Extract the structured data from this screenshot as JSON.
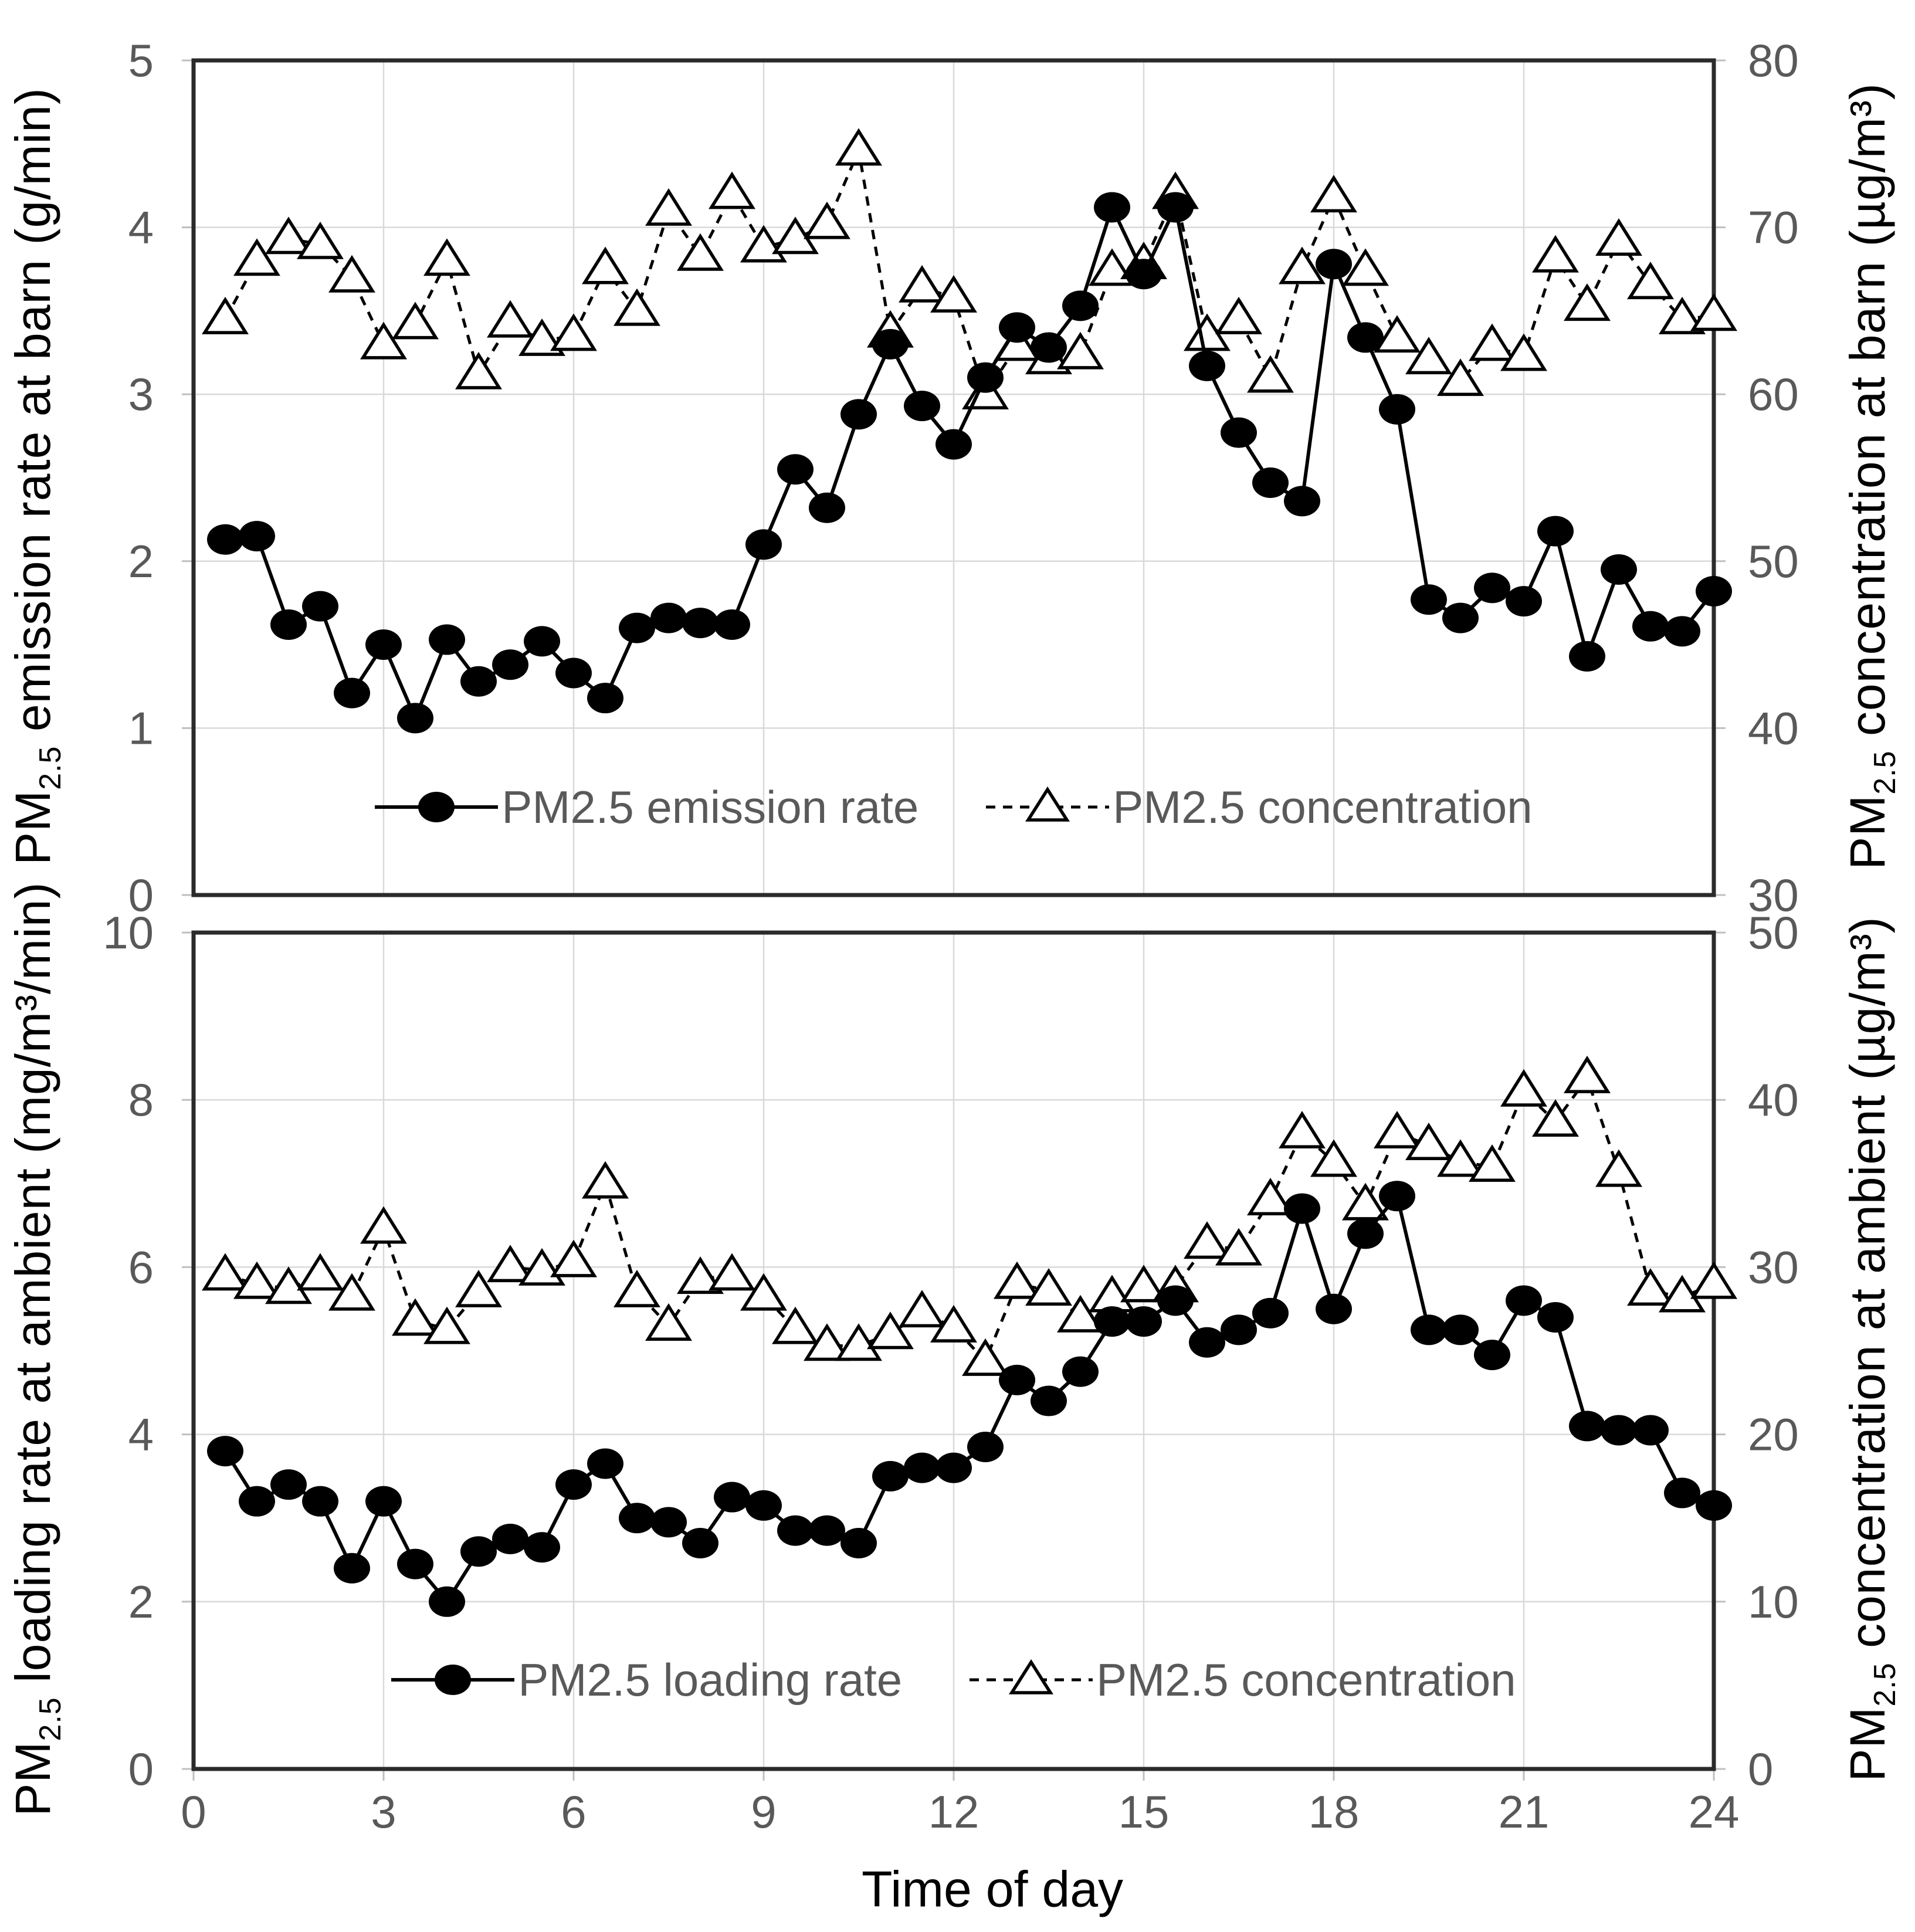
{
  "figure": {
    "background": "#ffffff"
  },
  "colors": {
    "series": "#000000",
    "grid": "#d9d9d9",
    "plot_border": "#2b2b2b",
    "tick_mark": "#bfbfbf",
    "tick_label": "#595959",
    "legend_text": "#595959",
    "axis_title": "#000000"
  },
  "chart_data": [
    {
      "type": "line",
      "panel": "top",
      "x": [
        0.5,
        1,
        1.5,
        2,
        2.5,
        3,
        3.5,
        4,
        4.5,
        5,
        5.5,
        6,
        6.5,
        7,
        7.5,
        8,
        8.5,
        9,
        9.5,
        10,
        10.5,
        11,
        11.5,
        12,
        12.5,
        13,
        13.5,
        14,
        14.5,
        15,
        15.5,
        16,
        16.5,
        17,
        17.5,
        18,
        18.5,
        19,
        19.5,
        20,
        20.5,
        21,
        21.5,
        22,
        22.5,
        23,
        23.5,
        24
      ],
      "x_axis": {
        "min": 0,
        "max": 24,
        "ticks": [
          0,
          3,
          6,
          9,
          12,
          15,
          18,
          21,
          24
        ],
        "show_tick_labels": false,
        "label": ""
      },
      "left_axis": {
        "min": 0,
        "max": 5,
        "ticks": [
          0,
          1,
          2,
          3,
          4,
          5
        ],
        "title_pm": "PM",
        "title_sub": "2.5",
        "title_rest": " emission rate at barn (g/min)"
      },
      "right_axis": {
        "min": 30,
        "max": 80,
        "ticks": [
          30,
          40,
          50,
          60,
          70,
          80
        ],
        "title_pm": "PM",
        "title_sub": "2.5",
        "title_rest": " concentration at barn (µg/m³)"
      },
      "grid": true,
      "legend_position": "inside-bottom",
      "series": [
        {
          "name": "PM2.5 emission rate",
          "axis": "left",
          "marker": "filled-circle",
          "line_style": "solid",
          "values": [
            2.13,
            2.15,
            1.62,
            1.73,
            1.21,
            1.5,
            1.06,
            1.53,
            1.28,
            1.38,
            1.52,
            1.33,
            1.18,
            1.6,
            1.66,
            1.63,
            1.62,
            2.1,
            2.55,
            2.32,
            2.88,
            3.3,
            2.93,
            2.7,
            3.1,
            3.4,
            3.28,
            3.53,
            4.12,
            3.72,
            4.12,
            3.17,
            2.77,
            2.47,
            2.36,
            3.78,
            3.34,
            2.91,
            1.77,
            1.66,
            1.84,
            1.76,
            2.18,
            1.43,
            1.95,
            1.61,
            1.58,
            1.82
          ]
        },
        {
          "name": "PM2.5 concentration",
          "axis": "right",
          "marker": "open-triangle",
          "line_style": "dashed",
          "values": [
            64.5,
            68,
            69.3,
            69,
            67,
            63,
            64.2,
            68,
            61.2,
            64.3,
            63.2,
            63.5,
            67.5,
            65,
            71,
            68.3,
            72,
            68.8,
            69.3,
            70.2,
            74.6,
            63.7,
            66.4,
            65.8,
            60,
            62.9,
            62.1,
            62.4,
            67.4,
            67.8,
            72,
            63.5,
            64.5,
            61,
            67.5,
            71.8,
            67.4,
            63.4,
            62.1,
            60.8,
            62.9,
            62.3,
            68.2,
            65.3,
            69.2,
            66.6,
            64.5,
            64.7
          ]
        }
      ]
    },
    {
      "type": "line",
      "panel": "bottom",
      "x": [
        0.5,
        1,
        1.5,
        2,
        2.5,
        3,
        3.5,
        4,
        4.5,
        5,
        5.5,
        6,
        6.5,
        7,
        7.5,
        8,
        8.5,
        9,
        9.5,
        10,
        10.5,
        11,
        11.5,
        12,
        12.5,
        13,
        13.5,
        14,
        14.5,
        15,
        15.5,
        16,
        16.5,
        17,
        17.5,
        18,
        18.5,
        19,
        19.5,
        20,
        20.5,
        21,
        21.5,
        22,
        22.5,
        23,
        23.5,
        24
      ],
      "x_axis": {
        "min": 0,
        "max": 24,
        "ticks": [
          0,
          3,
          6,
          9,
          12,
          15,
          18,
          21,
          24
        ],
        "show_tick_labels": true,
        "label": "Time of day"
      },
      "left_axis": {
        "min": 0,
        "max": 10,
        "ticks": [
          0,
          2,
          4,
          6,
          8,
          10
        ],
        "title_pm": "PM",
        "title_sub": "2.5",
        "title_rest": " loading rate at ambient (mg/m³/min)"
      },
      "right_axis": {
        "min": 0,
        "max": 50,
        "ticks": [
          0,
          10,
          20,
          30,
          40,
          50
        ],
        "title_pm": "PM",
        "title_sub": "2.5",
        "title_rest": " concentration at ambient (µg/m³)"
      },
      "grid": true,
      "legend_position": "inside-bottom",
      "series": [
        {
          "name": "PM2.5 loading rate",
          "axis": "left",
          "marker": "filled-circle",
          "line_style": "solid",
          "values": [
            3.8,
            3.2,
            3.4,
            3.2,
            2.4,
            3.2,
            2.45,
            2.0,
            2.6,
            2.75,
            2.65,
            3.4,
            3.65,
            3.0,
            2.95,
            2.7,
            3.25,
            3.15,
            2.85,
            2.85,
            2.7,
            3.5,
            3.6,
            3.6,
            3.85,
            4.65,
            4.4,
            4.75,
            5.35,
            5.35,
            5.6,
            5.1,
            5.25,
            5.45,
            6.7,
            5.5,
            6.4,
            6.85,
            5.25,
            5.25,
            4.95,
            5.6,
            5.4,
            4.1,
            4.05,
            4.05,
            3.3,
            3.15
          ]
        },
        {
          "name": "PM2.5 concentration",
          "axis": "right",
          "marker": "open-triangle",
          "line_style": "dashed",
          "values": [
            29.5,
            29,
            28.7,
            29.5,
            28.3,
            32.3,
            26.8,
            26.3,
            28.5,
            30,
            29.8,
            30.3,
            35,
            28.5,
            26.5,
            29.3,
            29.5,
            28.3,
            26.3,
            25.3,
            25.3,
            26,
            27.3,
            26.4,
            24.4,
            29,
            28.6,
            27,
            28.2,
            28.8,
            28.8,
            31.4,
            31,
            34,
            38,
            36.3,
            33.7,
            38,
            37.3,
            36.3,
            36,
            40.5,
            38.7,
            41.3,
            35.7,
            28.6,
            28.2,
            29
          ]
        }
      ]
    }
  ]
}
